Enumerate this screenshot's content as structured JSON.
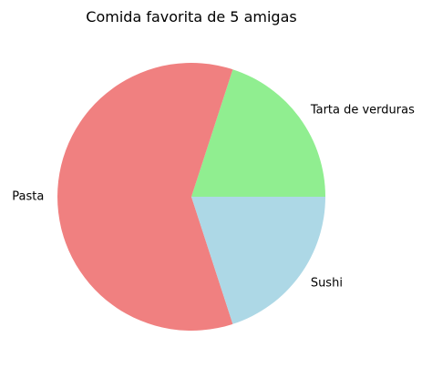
{
  "chart_data": {
    "type": "pie",
    "title": "Comida favorita de 5 amigas",
    "categories": [
      "Tarta de verduras",
      "Pasta",
      "Sushi"
    ],
    "values": [
      1,
      3,
      1
    ],
    "colors": [
      "#90ee90",
      "#f08080",
      "#add8e6"
    ],
    "start_angle_deg": 0,
    "direction": "counterclockwise",
    "legend": "none",
    "grid": false
  }
}
